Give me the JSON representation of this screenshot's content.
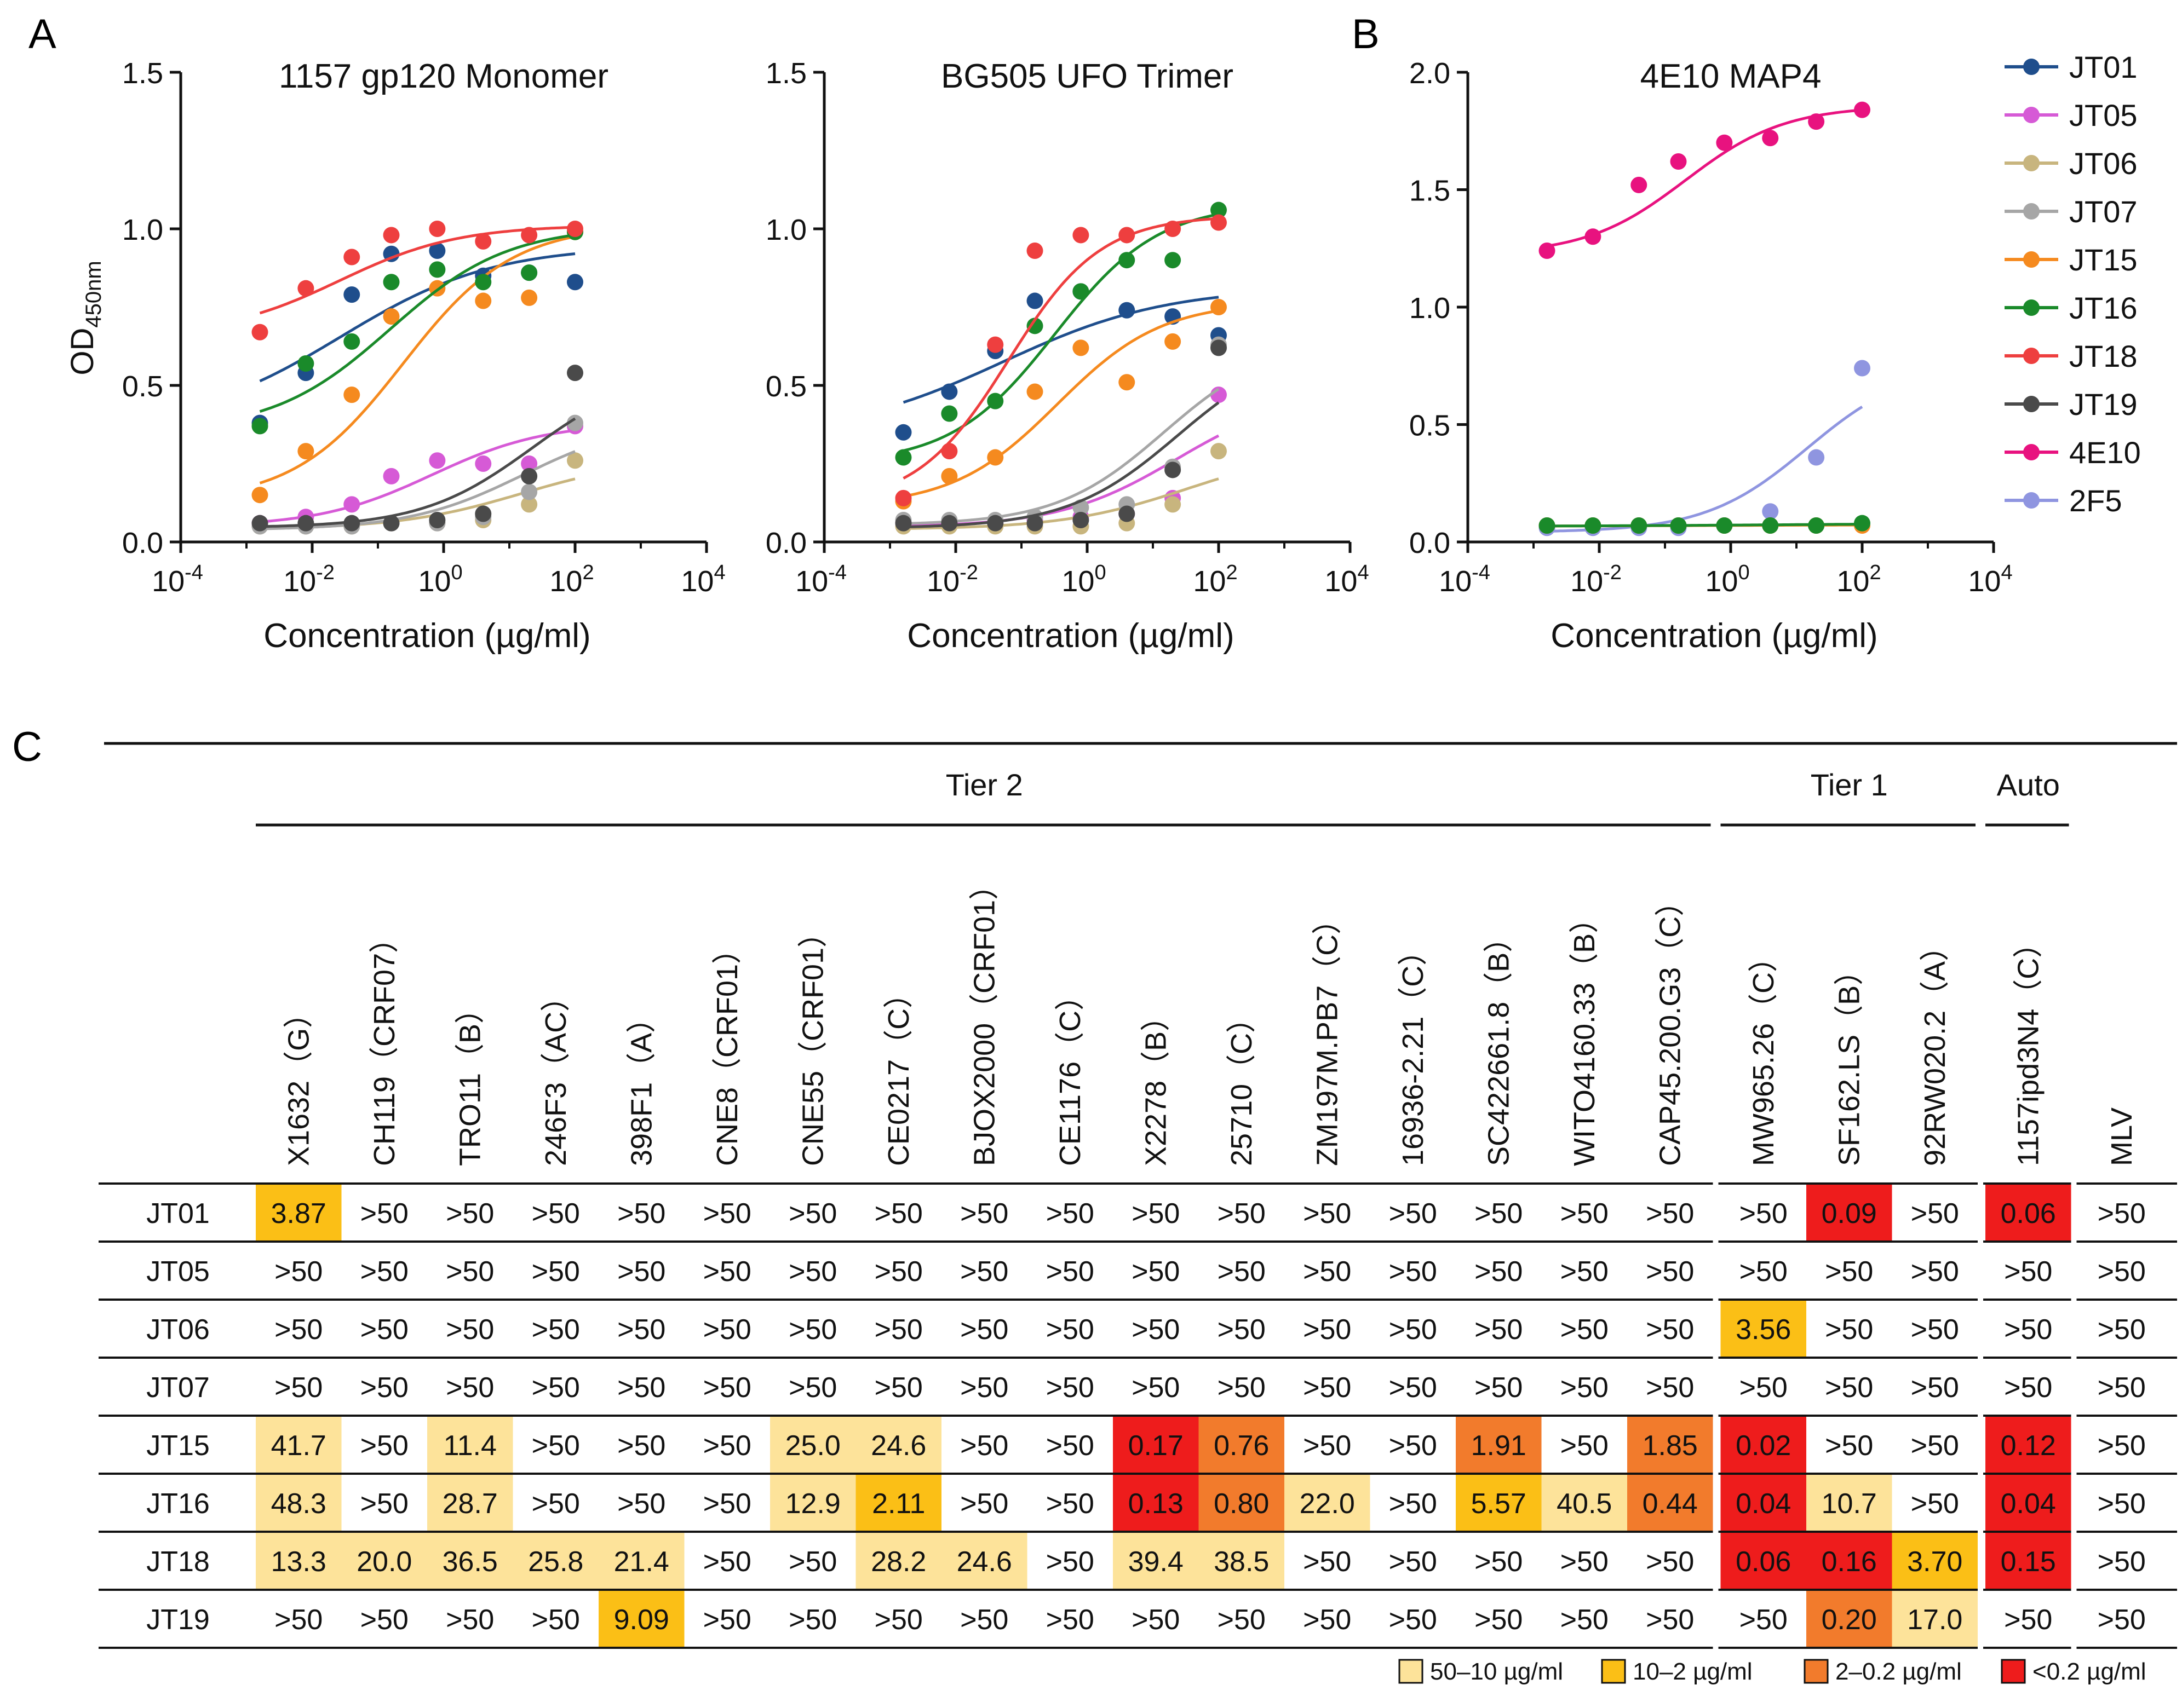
{
  "panel_letters": {
    "a": "A",
    "b": "B",
    "c": "C"
  },
  "colors": {
    "JT01": "#1f4e8c",
    "JT05": "#d65ad6",
    "JT06": "#c8b57e",
    "JT07": "#a6a6a6",
    "JT15": "#f58a1f",
    "JT16": "#1a8a2a",
    "JT18": "#ee3f3f",
    "JT19": "#4a4a4a",
    "4E10": "#e8127f",
    "2F5": "#8f95e0",
    "bin_50_10": "#fde39a",
    "bin_10_2": "#fbbf16",
    "bin_2_02": "#f27b2c",
    "bin_lt02": "#ee1c1c"
  },
  "chart_data": [
    {
      "type": "line",
      "title": "1157 gp120 Monomer",
      "xlabel": "Concentration (µg/ml)",
      "ylabel": "OD450nm",
      "ylabel_main": "OD",
      "ylabel_sub": "450nm",
      "xscale": "log10",
      "xlim_exp": [
        -4,
        4
      ],
      "ylim": [
        0,
        1.5
      ],
      "yticks": [
        "0.0",
        "0.5",
        "1.0",
        "1.5"
      ],
      "x_ug_ml": [
        0.0016,
        0.008,
        0.04,
        0.16,
        0.8,
        4,
        20,
        100
      ],
      "series": [
        {
          "name": "JT01",
          "values": [
            0.38,
            0.54,
            0.79,
            0.92,
            0.93,
            0.85,
            0.86,
            0.83
          ]
        },
        {
          "name": "JT05",
          "values": [
            0.06,
            0.08,
            0.12,
            0.21,
            0.26,
            0.25,
            0.25,
            0.37
          ]
        },
        {
          "name": "JT06",
          "values": [
            0.05,
            0.05,
            0.05,
            0.06,
            0.06,
            0.07,
            0.12,
            0.26
          ]
        },
        {
          "name": "JT07",
          "values": [
            0.05,
            0.05,
            0.05,
            0.06,
            0.06,
            0.08,
            0.16,
            0.38
          ]
        },
        {
          "name": "JT15",
          "values": [
            0.15,
            0.29,
            0.47,
            0.72,
            0.81,
            0.77,
            0.78,
            0.99
          ]
        },
        {
          "name": "JT16",
          "values": [
            0.37,
            0.57,
            0.64,
            0.83,
            0.87,
            0.83,
            0.86,
            0.99
          ]
        },
        {
          "name": "JT18",
          "values": [
            0.67,
            0.81,
            0.91,
            0.98,
            1.0,
            0.96,
            0.98,
            1.0
          ]
        },
        {
          "name": "JT19",
          "values": [
            0.06,
            0.06,
            0.06,
            0.06,
            0.07,
            0.09,
            0.21,
            0.54
          ]
        }
      ]
    },
    {
      "type": "line",
      "title": "BG505 UFO Trimer",
      "xlabel": "Concentration (µg/ml)",
      "xscale": "log10",
      "xlim_exp": [
        -4,
        4
      ],
      "ylim": [
        0,
        1.5
      ],
      "yticks": [
        "0.0",
        "0.5",
        "1.0",
        "1.5"
      ],
      "x_ug_ml": [
        0.0016,
        0.008,
        0.04,
        0.16,
        0.8,
        4,
        20,
        100
      ],
      "series": [
        {
          "name": "JT01",
          "values": [
            0.35,
            0.48,
            0.61,
            0.77,
            0.8,
            0.74,
            0.72,
            0.66
          ]
        },
        {
          "name": "JT05",
          "values": [
            0.06,
            0.06,
            0.06,
            0.07,
            0.08,
            0.09,
            0.14,
            0.47
          ]
        },
        {
          "name": "JT06",
          "values": [
            0.05,
            0.05,
            0.05,
            0.05,
            0.05,
            0.06,
            0.12,
            0.29
          ]
        },
        {
          "name": "JT07",
          "values": [
            0.07,
            0.07,
            0.07,
            0.08,
            0.11,
            0.12,
            0.24,
            0.63
          ]
        },
        {
          "name": "JT15",
          "values": [
            0.13,
            0.21,
            0.27,
            0.48,
            0.62,
            0.51,
            0.64,
            0.75
          ]
        },
        {
          "name": "JT16",
          "values": [
            0.27,
            0.41,
            0.45,
            0.69,
            0.8,
            0.9,
            0.9,
            1.06
          ]
        },
        {
          "name": "JT18",
          "values": [
            0.14,
            0.29,
            0.63,
            0.93,
            0.98,
            0.98,
            1.0,
            1.02
          ]
        },
        {
          "name": "JT19",
          "values": [
            0.06,
            0.06,
            0.06,
            0.06,
            0.07,
            0.09,
            0.23,
            0.62
          ]
        }
      ]
    },
    {
      "type": "line",
      "title": "4E10 MAP4",
      "xlabel": "Concentration (µg/ml)",
      "xscale": "log10",
      "xlim_exp": [
        -4,
        4
      ],
      "ylim": [
        0,
        2.0
      ],
      "yticks": [
        "0.0",
        "0.5",
        "1.0",
        "1.5",
        "2.0"
      ],
      "x_ug_ml": [
        0.0016,
        0.008,
        0.04,
        0.16,
        0.8,
        4,
        20,
        100
      ],
      "series": [
        {
          "name": "4E10",
          "values": [
            1.24,
            1.3,
            1.52,
            1.62,
            1.7,
            1.72,
            1.79,
            1.84
          ]
        },
        {
          "name": "2F5",
          "values": [
            0.06,
            0.06,
            0.06,
            0.06,
            0.07,
            0.13,
            0.36,
            0.74
          ]
        },
        {
          "name": "JT15",
          "values": [
            0.07,
            0.07,
            0.07,
            0.07,
            0.07,
            0.07,
            0.07,
            0.07
          ]
        },
        {
          "name": "JT16",
          "values": [
            0.07,
            0.07,
            0.07,
            0.07,
            0.07,
            0.07,
            0.07,
            0.08
          ]
        }
      ]
    },
    {
      "type": "table",
      "groups": [
        {
          "name": "Tier 2",
          "span": 17
        },
        {
          "name": "Tier 1",
          "span": 3
        },
        {
          "name": "Auto",
          "span": 1
        },
        {
          "name": "",
          "span": 1
        }
      ],
      "columns": [
        "X1632（G）",
        "CH119（CRF07）",
        "TRO11（B）",
        "246F3（AC）",
        "398F1（A）",
        "CNE8（CRF01）",
        "CNE55（CRF01）",
        "CE0217（C）",
        "BJOX2000（CRF01）",
        "CE1176（C）",
        "X2278（B）",
        "25710（C）",
        "ZM197M.PB7（C）",
        "16936-2.21（C）",
        "SC422661.8（B）",
        "WITO4160.33（B）",
        "CAP45.200.G3（C）",
        "MW965.26（C）",
        "SF162.LS（B）",
        "92RW020.2（A）",
        "1157ipd3N4（C）",
        "MLV"
      ],
      "rows": [
        {
          "name": "JT01",
          "values": [
            "3.87",
            ">50",
            ">50",
            ">50",
            ">50",
            ">50",
            ">50",
            ">50",
            ">50",
            ">50",
            ">50",
            ">50",
            ">50",
            ">50",
            ">50",
            ">50",
            ">50",
            ">50",
            "0.09",
            ">50",
            "0.06",
            ">50"
          ]
        },
        {
          "name": "JT05",
          "values": [
            ">50",
            ">50",
            ">50",
            ">50",
            ">50",
            ">50",
            ">50",
            ">50",
            ">50",
            ">50",
            ">50",
            ">50",
            ">50",
            ">50",
            ">50",
            ">50",
            ">50",
            ">50",
            ">50",
            ">50",
            ">50",
            ">50"
          ]
        },
        {
          "name": "JT06",
          "values": [
            ">50",
            ">50",
            ">50",
            ">50",
            ">50",
            ">50",
            ">50",
            ">50",
            ">50",
            ">50",
            ">50",
            ">50",
            ">50",
            ">50",
            ">50",
            ">50",
            ">50",
            "3.56",
            ">50",
            ">50",
            ">50",
            ">50"
          ]
        },
        {
          "name": "JT07",
          "values": [
            ">50",
            ">50",
            ">50",
            ">50",
            ">50",
            ">50",
            ">50",
            ">50",
            ">50",
            ">50",
            ">50",
            ">50",
            ">50",
            ">50",
            ">50",
            ">50",
            ">50",
            ">50",
            ">50",
            ">50",
            ">50",
            ">50"
          ]
        },
        {
          "name": "JT15",
          "values": [
            "41.7",
            ">50",
            "11.4",
            ">50",
            ">50",
            ">50",
            "25.0",
            "24.6",
            ">50",
            ">50",
            "0.17",
            "0.76",
            ">50",
            ">50",
            "1.91",
            ">50",
            "1.85",
            "0.02",
            ">50",
            ">50",
            "0.12",
            ">50"
          ]
        },
        {
          "name": "JT16",
          "values": [
            "48.3",
            ">50",
            "28.7",
            ">50",
            ">50",
            ">50",
            "12.9",
            "2.11",
            ">50",
            ">50",
            "0.13",
            "0.80",
            "22.0",
            ">50",
            "5.57",
            "40.5",
            "0.44",
            "0.04",
            "10.7",
            ">50",
            "0.04",
            ">50"
          ]
        },
        {
          "name": "JT18",
          "values": [
            "13.3",
            "20.0",
            "36.5",
            "25.8",
            "21.4",
            ">50",
            ">50",
            "28.2",
            "24.6",
            ">50",
            "39.4",
            "38.5",
            ">50",
            ">50",
            ">50",
            ">50",
            ">50",
            "0.06",
            "0.16",
            "3.70",
            "0.15",
            ">50"
          ]
        },
        {
          "name": "JT19",
          "values": [
            ">50",
            ">50",
            ">50",
            ">50",
            "9.09",
            ">50",
            ">50",
            ">50",
            ">50",
            ">50",
            ">50",
            ">50",
            ">50",
            ">50",
            ">50",
            ">50",
            ">50",
            ">50",
            "0.20",
            "17.0",
            ">50",
            ">50"
          ]
        }
      ],
      "legend": [
        {
          "label": "50–10 µg/ml",
          "color": "#fde39a"
        },
        {
          "label": "10–2 µg/ml",
          "color": "#fbbf16"
        },
        {
          "label": "2–0.2 µg/ml",
          "color": "#f27b2c"
        },
        {
          "label": "<0.2 µg/ml",
          "color": "#ee1c1c"
        }
      ]
    }
  ],
  "legend_series": [
    "JT01",
    "JT05",
    "JT06",
    "JT07",
    "JT15",
    "JT16",
    "JT18",
    "JT19",
    "4E10",
    "2F5"
  ]
}
